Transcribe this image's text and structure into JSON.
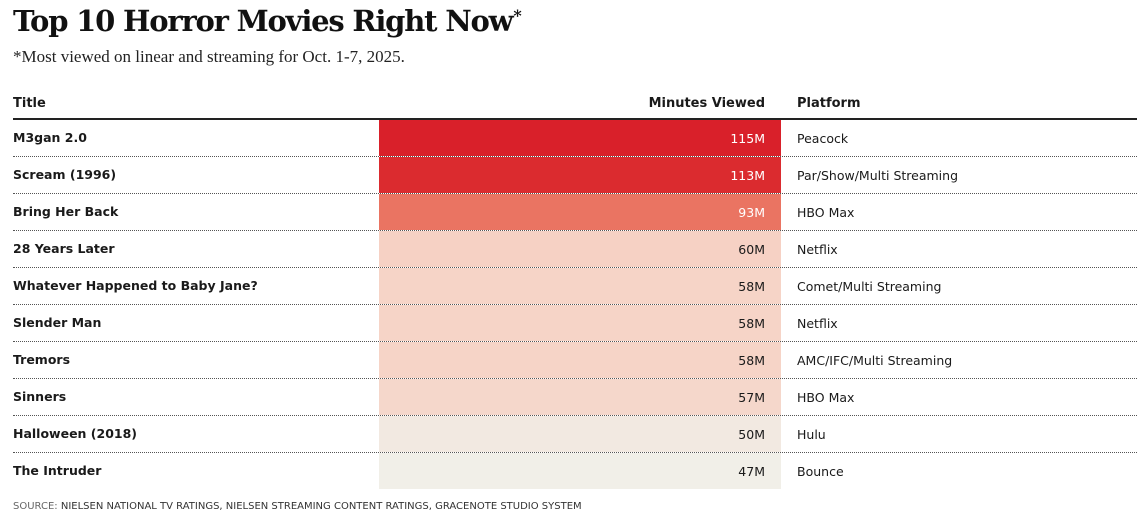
{
  "header": {
    "title": "Top 10 Horror Movies Right Now",
    "title_mark": "*",
    "subtitle": "*Most viewed on linear and streaming for Oct. 1-7, 2025."
  },
  "columns": {
    "title": "Title",
    "minutes": "Minutes Viewed",
    "platform": "Platform"
  },
  "chart_data": {
    "type": "table",
    "title": "Top 10 Horror Movies Right Now",
    "subtitle": "*Most viewed on linear and streaming for Oct. 1-7, 2025.",
    "columns": [
      "Title",
      "Minutes Viewed",
      "Platform"
    ],
    "rows": [
      {
        "title": "M3gan 2.0",
        "minutes": 115,
        "label": "115M",
        "platform": "Peacock",
        "color": "#d9202a",
        "text_color": "#ffffff"
      },
      {
        "title": "Scream (1996)",
        "minutes": 113,
        "label": "113M",
        "platform": "Par/Show/Multi Streaming",
        "color": "#db2b2f",
        "text_color": "#ffffff"
      },
      {
        "title": "Bring Her Back",
        "minutes": 93,
        "label": "93M",
        "platform": "HBO Max",
        "color": "#ea7462",
        "text_color": "#ffffff"
      },
      {
        "title": "28 Years Later",
        "minutes": 60,
        "label": "60M",
        "platform": "Netflix",
        "color": "#f6d1c4",
        "text_color": "#1a1a1a"
      },
      {
        "title": "Whatever Happened to Baby Jane?",
        "minutes": 58,
        "label": "58M",
        "platform": "Comet/Multi Streaming",
        "color": "#f6d4c7",
        "text_color": "#1a1a1a"
      },
      {
        "title": "Slender Man",
        "minutes": 58,
        "label": "58M",
        "platform": "Netflix",
        "color": "#f6d4c7",
        "text_color": "#1a1a1a"
      },
      {
        "title": "Tremors",
        "minutes": 58,
        "label": "58M",
        "platform": "AMC/IFC/Multi Streaming",
        "color": "#f6d4c7",
        "text_color": "#1a1a1a"
      },
      {
        "title": "Sinners",
        "minutes": 57,
        "label": "57M",
        "platform": "HBO Max",
        "color": "#f5d7cb",
        "text_color": "#1a1a1a"
      },
      {
        "title": "Halloween (2018)",
        "minutes": 50,
        "label": "50M",
        "platform": "Hulu",
        "color": "#f2e9e1",
        "text_color": "#1a1a1a"
      },
      {
        "title": "The Intruder",
        "minutes": 47,
        "label": "47M",
        "platform": "Bounce",
        "color": "#f1efe8",
        "text_color": "#1a1a1a"
      }
    ]
  },
  "footer": {
    "source_label": "SOURCE:",
    "source_text": "NIELSEN NATIONAL TV RATINGS, NIELSEN STREAMING CONTENT RATINGS, GRACENOTE STUDIO SYSTEM"
  }
}
